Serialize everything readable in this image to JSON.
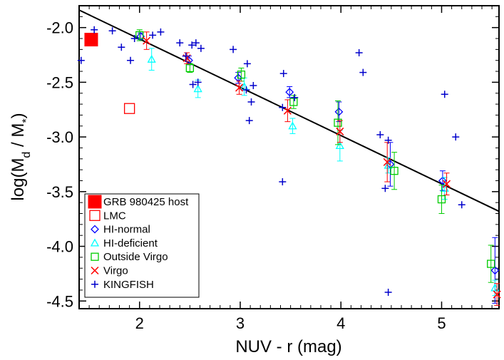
{
  "chart_data": {
    "type": "scatter",
    "xlabel": "NUV - r (mag)",
    "ylabel": "log(M_d / M_*)",
    "xlim": [
      1.4,
      5.57
    ],
    "ylim": [
      -4.57,
      -1.8
    ],
    "x_ticks": [
      2,
      3,
      4,
      5
    ],
    "x_tick_labels": [
      "2",
      "3",
      "4",
      "5"
    ],
    "y_ticks": [
      -2.0,
      -2.5,
      -3.0,
      -3.5,
      -4.0,
      -4.5
    ],
    "y_tick_labels": [
      "-2.0",
      "-2.5",
      "-3.0",
      "-3.5",
      "-4.0",
      "-4.5"
    ],
    "legend_position": "bottom-left",
    "fit_line": {
      "x": [
        1.4,
        5.57
      ],
      "y": [
        -1.84,
        -3.68
      ],
      "color": "#000000"
    },
    "series": [
      {
        "name": "GRB 980425 host",
        "marker": "filled-square",
        "color": "#ff0000",
        "points": [
          {
            "x": 1.52,
            "y": -2.11
          }
        ]
      },
      {
        "name": "LMC",
        "marker": "open-square",
        "color": "#ff0000",
        "points": [
          {
            "x": 1.9,
            "y": -2.74
          }
        ]
      },
      {
        "name": "HI-normal",
        "marker": "diamond",
        "color": "#0000ff",
        "points": [
          {
            "x": 2.01,
            "y": -2.08,
            "err": 0.03
          },
          {
            "x": 2.49,
            "y": -2.3,
            "err": 0.04
          },
          {
            "x": 2.98,
            "y": -2.46,
            "err": 0.05
          },
          {
            "x": 3.49,
            "y": -2.59,
            "err": 0.05
          },
          {
            "x": 3.98,
            "y": -2.77,
            "err": 0.09
          },
          {
            "x": 4.49,
            "y": -3.25,
            "err": 0.2
          },
          {
            "x": 5.01,
            "y": -3.4,
            "err": 0.09
          },
          {
            "x": 5.53,
            "y": -4.22,
            "err": 0.3
          }
        ]
      },
      {
        "name": "HI-deficient",
        "marker": "triangle",
        "color": "#00ffff",
        "points": [
          {
            "x": 2.12,
            "y": -2.29,
            "err": 0.1
          },
          {
            "x": 2.58,
            "y": -2.56,
            "err": 0.08
          },
          {
            "x": 3.04,
            "y": -2.54,
            "err": 0.08
          },
          {
            "x": 3.52,
            "y": -2.9,
            "err": 0.07
          },
          {
            "x": 3.99,
            "y": -3.08,
            "err": 0.14
          },
          {
            "x": 4.47,
            "y": -3.26,
            "err": 0.07
          },
          {
            "x": 5.03,
            "y": -3.47,
            "err": 0.1
          },
          {
            "x": 5.53,
            "y": -4.38,
            "err": 0.07
          }
        ]
      },
      {
        "name": "Outside Virgo",
        "marker": "open-square",
        "color": "#00cc00",
        "points": [
          {
            "x": 2.0,
            "y": -2.07,
            "err": 0.05
          },
          {
            "x": 2.5,
            "y": -2.37,
            "err": 0.04
          },
          {
            "x": 3.01,
            "y": -2.43,
            "err": 0.06
          },
          {
            "x": 3.53,
            "y": -2.68,
            "err": 0.06
          },
          {
            "x": 3.97,
            "y": -2.87,
            "err": 0.2
          },
          {
            "x": 4.53,
            "y": -3.31,
            "err": 0.17
          },
          {
            "x": 5.0,
            "y": -3.57,
            "err": 0.13
          },
          {
            "x": 5.49,
            "y": -4.16,
            "err": 0.17
          }
        ]
      },
      {
        "name": "Virgo",
        "marker": "cross",
        "color": "#ff0000",
        "points": [
          {
            "x": 2.07,
            "y": -2.12,
            "err": 0.08
          },
          {
            "x": 2.47,
            "y": -2.28,
            "err": 0.05
          },
          {
            "x": 2.99,
            "y": -2.55,
            "err": 0.06
          },
          {
            "x": 3.47,
            "y": -2.76,
            "err": 0.1
          },
          {
            "x": 3.99,
            "y": -2.95,
            "err": 0.1
          },
          {
            "x": 4.46,
            "y": -3.23,
            "err": 0.18
          },
          {
            "x": 5.05,
            "y": -3.43,
            "err": 0.1
          },
          {
            "x": 5.55,
            "y": -4.44,
            "err": 0.1
          }
        ]
      },
      {
        "name": "KINGFISH",
        "marker": "plus",
        "color": "#0000cc",
        "points": [
          {
            "x": 1.42,
            "y": -2.3
          },
          {
            "x": 1.55,
            "y": -2.02
          },
          {
            "x": 1.73,
            "y": -2.03
          },
          {
            "x": 1.82,
            "y": -2.18
          },
          {
            "x": 1.91,
            "y": -2.3
          },
          {
            "x": 1.95,
            "y": -2.1
          },
          {
            "x": 2.13,
            "y": -2.07
          },
          {
            "x": 2.21,
            "y": -2.04
          },
          {
            "x": 2.4,
            "y": -2.14
          },
          {
            "x": 2.46,
            "y": -2.26
          },
          {
            "x": 2.52,
            "y": -2.16
          },
          {
            "x": 2.56,
            "y": -2.14
          },
          {
            "x": 2.61,
            "y": -2.19
          },
          {
            "x": 2.53,
            "y": -2.52
          },
          {
            "x": 2.58,
            "y": -2.5
          },
          {
            "x": 2.93,
            "y": -2.2
          },
          {
            "x": 3.07,
            "y": -2.33
          },
          {
            "x": 3.06,
            "y": -2.57
          },
          {
            "x": 3.13,
            "y": -2.53
          },
          {
            "x": 3.11,
            "y": -2.68
          },
          {
            "x": 3.09,
            "y": -2.85
          },
          {
            "x": 3.43,
            "y": -2.42
          },
          {
            "x": 3.42,
            "y": -2.73
          },
          {
            "x": 3.42,
            "y": -3.41
          },
          {
            "x": 3.54,
            "y": -2.64
          },
          {
            "x": 4.18,
            "y": -2.23
          },
          {
            "x": 4.22,
            "y": -2.41
          },
          {
            "x": 4.39,
            "y": -2.98
          },
          {
            "x": 4.47,
            "y": -3.03
          },
          {
            "x": 4.44,
            "y": -3.47
          },
          {
            "x": 4.47,
            "y": -4.42
          },
          {
            "x": 5.03,
            "y": -2.61
          },
          {
            "x": 5.14,
            "y": -3.0
          },
          {
            "x": 5.2,
            "y": -3.62
          }
        ]
      }
    ]
  }
}
